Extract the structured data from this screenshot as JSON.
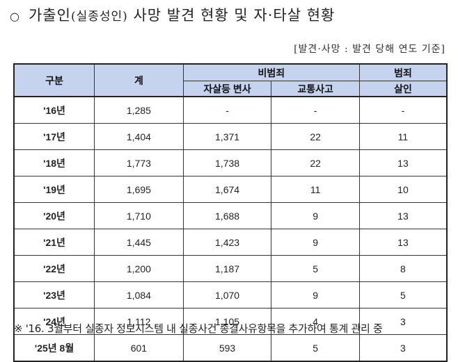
{
  "title": {
    "bullet": "○",
    "main_prefix": "가출인",
    "paren": "(실종성인)",
    "main_suffix": "사망 발견 현황 및 자·타살 현황"
  },
  "unit_note": "[발견·사망 : 발견 당해 연도 기준]",
  "table": {
    "headers": {
      "category": "구분",
      "total": "계",
      "non_crime": "비범죄",
      "crime": "범죄",
      "suicide_etc": "자살등 변사",
      "traffic": "교통사고",
      "homicide": "살인"
    },
    "rows": [
      {
        "year": "'16년",
        "total": "1,285",
        "suicide_etc": "-",
        "traffic": "-",
        "homicide": "-"
      },
      {
        "year": "'17년",
        "total": "1,404",
        "suicide_etc": "1,371",
        "traffic": "22",
        "homicide": "11"
      },
      {
        "year": "'18년",
        "total": "1,773",
        "suicide_etc": "1,738",
        "traffic": "22",
        "homicide": "13"
      },
      {
        "year": "'19년",
        "total": "1,695",
        "suicide_etc": "1,674",
        "traffic": "11",
        "homicide": "10"
      },
      {
        "year": "'20년",
        "total": "1,710",
        "suicide_etc": "1,688",
        "traffic": "9",
        "homicide": "13"
      },
      {
        "year": "'21년",
        "total": "1,445",
        "suicide_etc": "1,423",
        "traffic": "9",
        "homicide": "13"
      },
      {
        "year": "'22년",
        "total": "1,200",
        "suicide_etc": "1,187",
        "traffic": "5",
        "homicide": "8"
      },
      {
        "year": "'23년",
        "total": "1,084",
        "suicide_etc": "1,070",
        "traffic": "9",
        "homicide": "5"
      },
      {
        "year": "'24년",
        "total": "1,112",
        "suicide_etc": "1,105",
        "traffic": "4",
        "homicide": "3"
      },
      {
        "year": "'25년 8월",
        "total": "601",
        "suicide_etc": "593",
        "traffic": "5",
        "homicide": "3"
      }
    ]
  },
  "footnote": "※ '16. 3월부터 실종자 정보시스템 내 실종사건 종결사유항목을 추가하여 통계 관리 중",
  "colors": {
    "header_bg": "#c5d3ef",
    "border": "#222222"
  }
}
